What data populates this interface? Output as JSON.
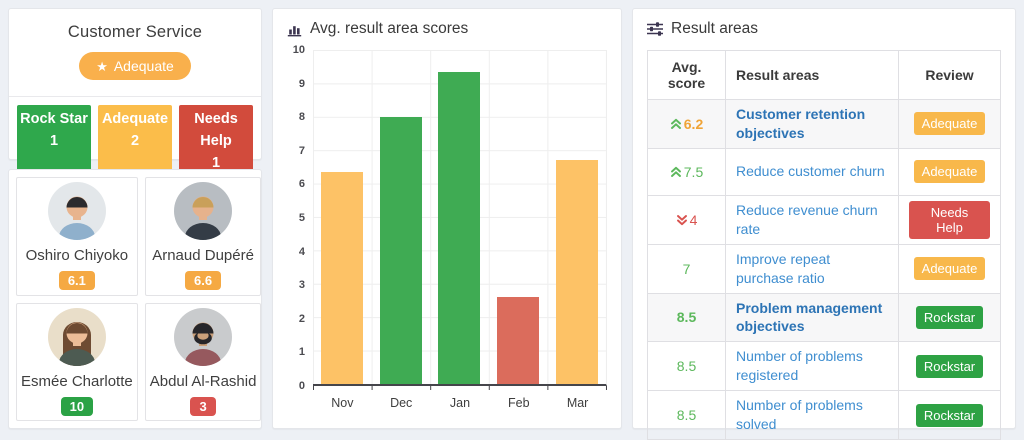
{
  "team": {
    "title": "Customer Service",
    "review_badge": {
      "label": "Adequate",
      "color": "#f9b04c",
      "star_icon": "★"
    },
    "tiles": [
      {
        "label": "Rock Star",
        "count": "1",
        "color": "#2fa84c"
      },
      {
        "label": "Adequate",
        "count": "2",
        "color": "#fbbd4a"
      },
      {
        "label": "Needs Help",
        "count": "1",
        "color": "#d24b3c"
      }
    ],
    "members": [
      {
        "name": "Oshiro Chiyoko",
        "score": "6.1",
        "score_color": "#f5a943",
        "avatar": {
          "bg": "#e3e7ea",
          "hair": "#2b2b2e",
          "skin": "#e8b48e",
          "shirt": "#8fb0cc",
          "style": "short"
        }
      },
      {
        "name": "Arnaud Dupéré",
        "score": "6.6",
        "score_color": "#f5a943",
        "avatar": {
          "bg": "#b8bdc2",
          "hair": "#c9a05a",
          "skin": "#e6b28c",
          "shirt": "#343c46",
          "style": "short"
        }
      },
      {
        "name": "Esmée Charlotte",
        "score": "10",
        "score_color": "#2ba245",
        "avatar": {
          "bg": "#e9dec9",
          "hair": "#6e4b32",
          "skin": "#edbd97",
          "shirt": "#4d5b52",
          "style": "long"
        }
      },
      {
        "name": "Abdul Al-Rashid",
        "score": "3",
        "score_color": "#d9534f",
        "avatar": {
          "bg": "#c9cbcd",
          "hair": "#26262a",
          "skin": "#caa07a",
          "shirt": "#96595e",
          "style": "beard"
        }
      }
    ]
  },
  "chart_data": {
    "type": "bar",
    "title": "Avg. result area scores",
    "categories": [
      "Nov",
      "Dec",
      "Jan",
      "Feb",
      "Mar"
    ],
    "values": [
      6.35,
      8,
      9.33,
      2.6,
      6.7
    ],
    "bar_colors": [
      "#fdc266",
      "#3fab53",
      "#3fab53",
      "#db6c5c",
      "#fdc266"
    ],
    "xlabel": "",
    "ylabel": "",
    "ylim": [
      0,
      10
    ],
    "yticks": [
      0,
      1,
      2,
      3,
      4,
      5,
      6,
      7,
      8,
      9,
      10
    ],
    "grid": true,
    "legend": false
  },
  "result_areas": {
    "title": "Result areas",
    "columns": [
      "Avg. score",
      "Result areas",
      "Review"
    ],
    "rows": [
      {
        "trend": "up",
        "score": "6.2",
        "score_color": "#f0a437",
        "score_bold": true,
        "area": "Customer retention objectives",
        "area_bold": true,
        "review": "Adequate",
        "review_color": "#f8b84b",
        "shaded": true
      },
      {
        "trend": "up",
        "score": "7.5",
        "score_color": "#5cb85c",
        "score_bold": false,
        "area": "Reduce customer churn",
        "area_bold": false,
        "review": "Adequate",
        "review_color": "#f8b84b",
        "shaded": false
      },
      {
        "trend": "down",
        "score": "4",
        "score_color": "#d9534f",
        "score_bold": false,
        "area": "Reduce revenue churn rate",
        "area_bold": false,
        "review": "Needs Help",
        "review_color": "#d9534f",
        "shaded": false
      },
      {
        "trend": "none",
        "score": "7",
        "score_color": "#5cb85c",
        "score_bold": false,
        "area": "Improve  repeat purchase ratio",
        "area_bold": false,
        "review": "Adequate",
        "review_color": "#f8b84b",
        "shaded": false
      },
      {
        "trend": "none",
        "score": "8.5",
        "score_color": "#5cb85c",
        "score_bold": true,
        "area": "Problem management objectives",
        "area_bold": true,
        "review": "Rockstar",
        "review_color": "#2ea244",
        "shaded": true
      },
      {
        "trend": "none",
        "score": "8.5",
        "score_color": "#5cb85c",
        "score_bold": false,
        "area": "Number of problems registered",
        "area_bold": false,
        "review": "Rockstar",
        "review_color": "#2ea244",
        "shaded": false
      },
      {
        "trend": "none",
        "score": "8.5",
        "score_color": "#5cb85c",
        "score_bold": false,
        "area": "Number of problems solved",
        "area_bold": false,
        "review": "Rockstar",
        "review_color": "#2ea244",
        "shaded": false
      }
    ],
    "trend_colors": {
      "up": "#5cb85c",
      "down": "#d9534f"
    }
  }
}
